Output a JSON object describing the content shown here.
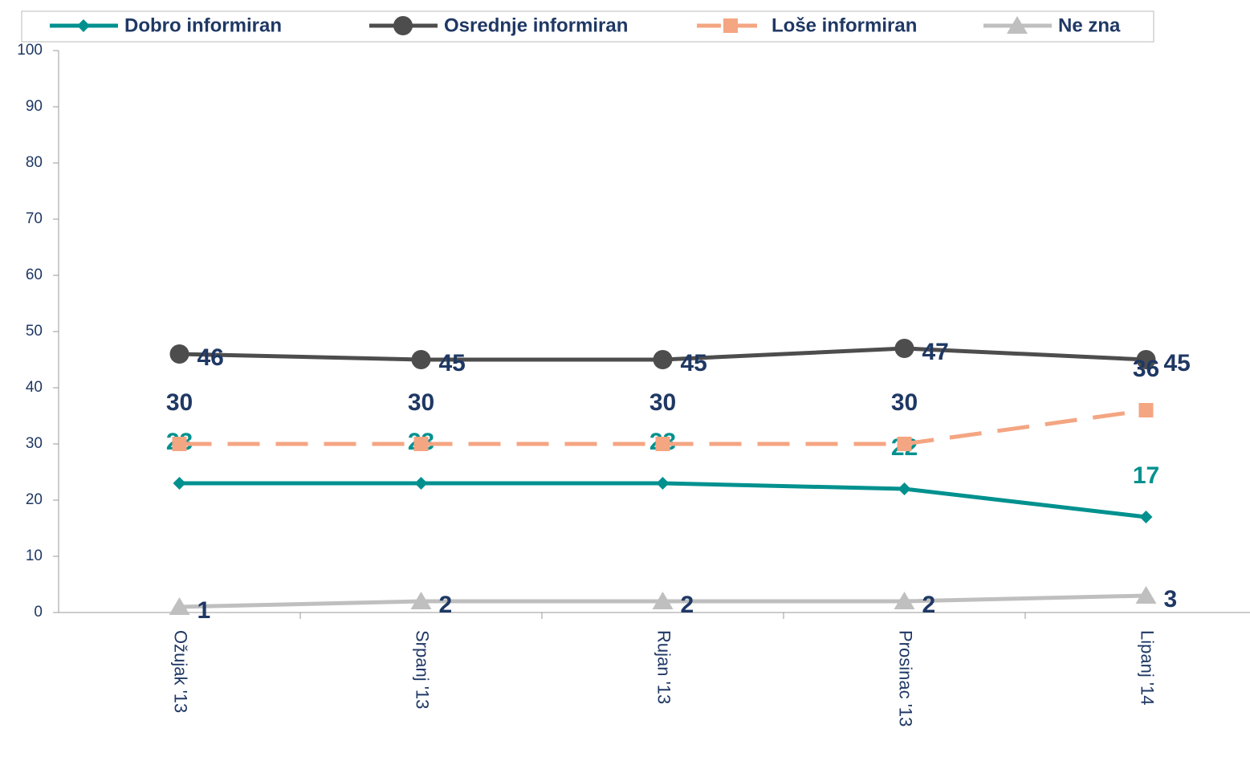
{
  "chart_data": {
    "type": "line",
    "categories": [
      "Ožujak '13",
      "Srpanj '13",
      "Rujan '13",
      "Prosinac '13",
      "Lipanj '14"
    ],
    "series": [
      {
        "name": "Dobro informiran",
        "color": "#00918f",
        "label_color": "#00918f",
        "marker": "diamond",
        "line_style": "solid",
        "values": [
          23,
          23,
          23,
          22,
          17
        ]
      },
      {
        "name": "Osrednje informiran",
        "color": "#4d4d4d",
        "label_color": "#1f3864",
        "marker": "circle",
        "line_style": "solid",
        "values": [
          46,
          45,
          45,
          47,
          45
        ]
      },
      {
        "name": "Loše informiran",
        "color": "#f4a582",
        "label_color": "#1f3864",
        "marker": "square",
        "line_style": "dashed",
        "values": [
          30,
          30,
          30,
          30,
          36
        ]
      },
      {
        "name": "Ne zna",
        "color": "#bfbfbf",
        "label_color": "#1f3864",
        "marker": "triangle",
        "line_style": "solid",
        "values": [
          1,
          2,
          2,
          2,
          3
        ]
      }
    ],
    "ylim": [
      0,
      100
    ],
    "yticks": [
      0,
      10,
      20,
      30,
      40,
      50,
      60,
      70,
      80,
      90,
      100
    ],
    "grid": false,
    "legend": "top"
  }
}
